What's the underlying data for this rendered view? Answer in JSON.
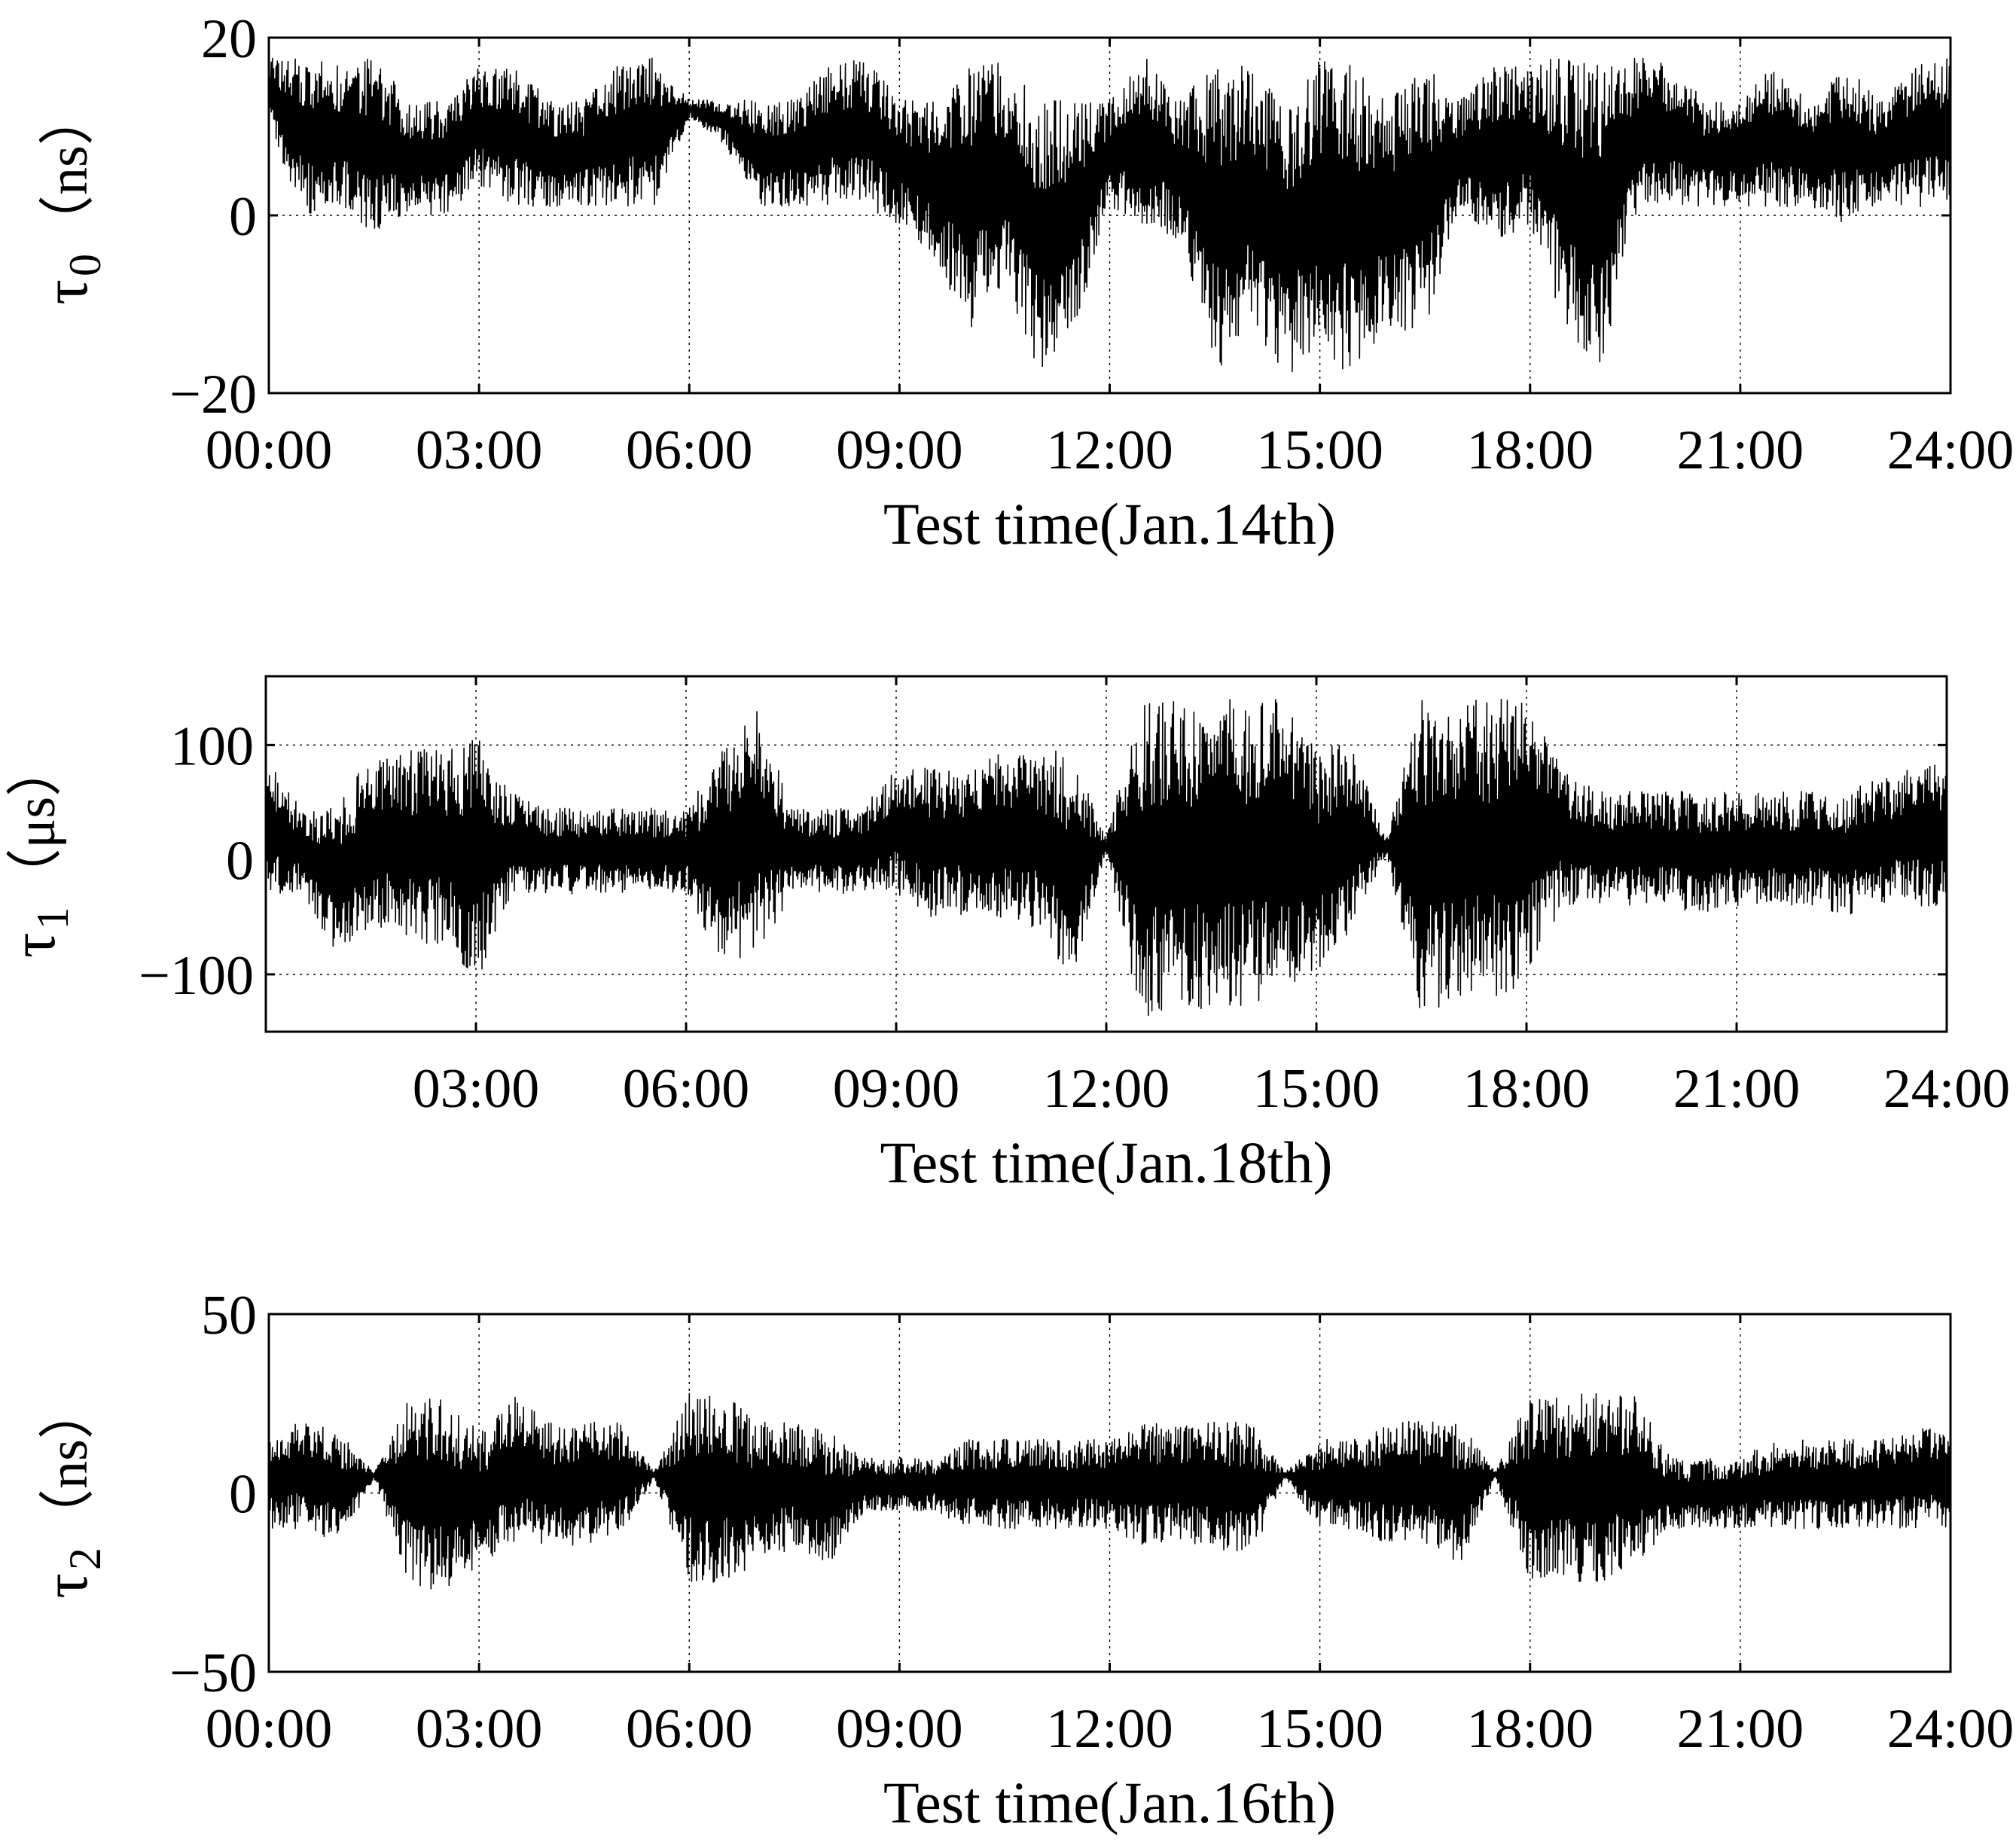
{
  "chart_data": [
    {
      "type": "line",
      "xlabel": "Test time(Jan.14th)",
      "ylabel": {
        "symbol": "τ",
        "subscript": "0",
        "unit": "（ns）"
      },
      "xlim": [
        "00:00",
        "24:00"
      ],
      "xticks": [
        "00:00",
        "03:00",
        "06:00",
        "09:00",
        "12:00",
        "15:00",
        "18:00",
        "21:00",
        "24:00"
      ],
      "ylim": [
        -20,
        20
      ],
      "yticks": [
        20,
        0,
        -20
      ],
      "ytick_labels": [
        "20",
        "0",
        "−20"
      ],
      "grid": true,
      "series": [
        {
          "x_hours": [
            0,
            0.5,
            1.0,
            1.5,
            2.0,
            2.5,
            3.0,
            3.5,
            4.0,
            4.5,
            5.0,
            5.5,
            6.0,
            6.5,
            7.0,
            7.5,
            8.0,
            8.5,
            9.0,
            9.5,
            10.0,
            10.5,
            11.0,
            11.5,
            12.0,
            12.5,
            13.0,
            13.5,
            14.0,
            14.5,
            15.0,
            15.5,
            16.0,
            16.5,
            17.0,
            17.5,
            18.0,
            18.5,
            19.0,
            19.5,
            20.0,
            20.5,
            21.0,
            21.5,
            22.0,
            22.5,
            23.0,
            23.5,
            24.0
          ],
          "upper": [
            18,
            18,
            17,
            18,
            13,
            13,
            17,
            17,
            13,
            13,
            17,
            18,
            13,
            13,
            13,
            13,
            17,
            18,
            13,
            13,
            18,
            17,
            13,
            13,
            13,
            18,
            13,
            17,
            17,
            13,
            18,
            17,
            13,
            17,
            13,
            17,
            17,
            18,
            17,
            18,
            17,
            13,
            13,
            17,
            13,
            17,
            13,
            17,
            18
          ],
          "lower": [
            10,
            0,
            1,
            -2,
            0,
            0,
            3,
            1,
            1,
            1,
            1,
            1,
            11,
            8,
            1,
            1,
            1,
            1,
            -1,
            -5,
            -13,
            -8,
            -18,
            -13,
            1,
            -1,
            -3,
            -18,
            -13,
            -18,
            -16,
            -18,
            -13,
            -13,
            1,
            -3,
            -1,
            -13,
            -18,
            -1,
            1,
            1,
            1,
            1,
            1,
            -1,
            1,
            1,
            1
          ]
        }
      ]
    },
    {
      "type": "line",
      "xlabel": "Test time(Jan.18th)",
      "ylabel": {
        "symbol": "τ",
        "subscript": "1",
        "unit": "（μs）"
      },
      "xlim": [
        "00:00",
        "24:00"
      ],
      "xticks": [
        "03:00",
        "06:00",
        "09:00",
        "12:00",
        "15:00",
        "18:00",
        "21:00",
        "24:00"
      ],
      "ylim": [
        -150,
        160
      ],
      "yticks": [
        100,
        0,
        -100
      ],
      "ytick_labels": [
        "100",
        "0",
        "−100"
      ],
      "grid": true,
      "series": [
        {
          "x_hours": [
            0,
            0.5,
            1.0,
            1.5,
            2.0,
            2.5,
            3.0,
            3.5,
            4.0,
            4.5,
            5.0,
            5.5,
            6.0,
            6.5,
            7.0,
            7.5,
            8.0,
            8.5,
            9.0,
            9.5,
            10.0,
            10.5,
            11.0,
            11.5,
            12.0,
            12.5,
            13.0,
            13.5,
            14.0,
            14.5,
            15.0,
            15.5,
            16.0,
            16.5,
            17.0,
            17.5,
            18.0,
            18.5,
            19.0,
            19.5,
            20.0,
            20.5,
            21.0,
            21.5,
            22.0,
            22.5,
            23.0,
            23.5,
            24.0
          ],
          "upper": [
            90,
            45,
            45,
            95,
            95,
            100,
            110,
            60,
            45,
            45,
            45,
            45,
            45,
            95,
            140,
            45,
            45,
            45,
            80,
            80,
            80,
            95,
            95,
            95,
            20,
            140,
            140,
            140,
            140,
            140,
            100,
            100,
            20,
            140,
            140,
            140,
            140,
            80,
            60,
            60,
            60,
            60,
            60,
            60,
            60,
            60,
            70,
            80,
            90
          ],
          "lower": [
            -30,
            -30,
            -80,
            -60,
            -70,
            -75,
            -110,
            -30,
            -30,
            -30,
            -30,
            -30,
            -30,
            -90,
            -90,
            -30,
            -30,
            -30,
            -30,
            -50,
            -50,
            -50,
            -60,
            -110,
            5,
            -140,
            -130,
            -130,
            -130,
            -110,
            -100,
            -60,
            5,
            -140,
            -120,
            -120,
            -110,
            -40,
            -40,
            -40,
            -40,
            -50,
            -40,
            -40,
            -40,
            -50,
            -40,
            -40,
            -45
          ]
        }
      ]
    },
    {
      "type": "line",
      "xlabel": "Test time(Jan.16th)",
      "ylabel": {
        "symbol": "τ",
        "subscript": "2",
        "unit": "（ns）"
      },
      "xlim": [
        "00:00",
        "24:00"
      ],
      "xticks": [
        "00:00",
        "03:00",
        "06:00",
        "09:00",
        "12:00",
        "15:00",
        "18:00",
        "21:00",
        "24:00"
      ],
      "ylim": [
        -50,
        50
      ],
      "yticks": [
        50,
        0,
        -50
      ],
      "ytick_labels": [
        "50",
        "0",
        "−50"
      ],
      "grid": true,
      "series": [
        {
          "x_hours": [
            0,
            0.5,
            1.0,
            1.5,
            2.0,
            2.5,
            3.0,
            3.5,
            4.0,
            4.5,
            5.0,
            5.5,
            6.0,
            6.5,
            7.0,
            7.5,
            8.0,
            8.5,
            9.0,
            9.5,
            10.0,
            10.5,
            11.0,
            11.5,
            12.0,
            12.5,
            13.0,
            13.5,
            14.0,
            14.5,
            15.0,
            15.5,
            16.0,
            16.5,
            17.0,
            17.5,
            18.0,
            18.5,
            19.0,
            19.5,
            20.0,
            20.5,
            21.0,
            21.5,
            22.0,
            22.5,
            23.0,
            23.5,
            24.0
          ],
          "upper": [
            17,
            21,
            17,
            6,
            28,
            28,
            17,
            28,
            20,
            20,
            20,
            6,
            28,
            28,
            20,
            20,
            17,
            10,
            10,
            10,
            15,
            15,
            15,
            15,
            15,
            20,
            20,
            20,
            20,
            6,
            15,
            15,
            20,
            20,
            20,
            6,
            28,
            28,
            28,
            28,
            10,
            10,
            10,
            15,
            15,
            15,
            15,
            18,
            18
          ],
          "lower": [
            -10,
            -10,
            -15,
            4,
            -25,
            -28,
            -20,
            -15,
            -15,
            -15,
            -12,
            4,
            -25,
            -25,
            -20,
            -15,
            -20,
            -5,
            -5,
            -5,
            -10,
            -10,
            -10,
            -10,
            -10,
            -15,
            -15,
            -15,
            -20,
            4,
            -10,
            -10,
            -15,
            -15,
            -20,
            4,
            -25,
            -25,
            -25,
            -20,
            -10,
            -10,
            -10,
            -10,
            -10,
            -10,
            -10,
            -10,
            -10
          ]
        }
      ]
    }
  ]
}
